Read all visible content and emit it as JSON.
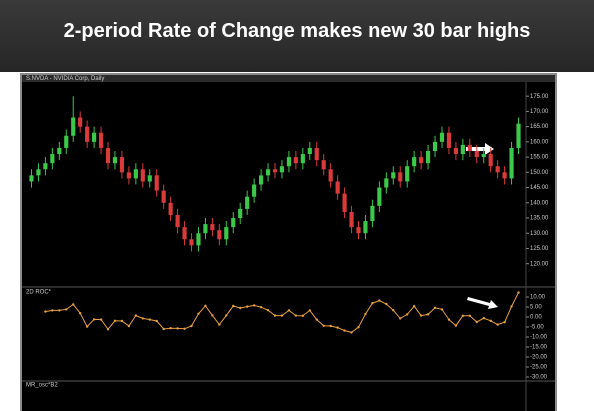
{
  "slide": {
    "title": "2-period Rate of Change makes new 30 bar highs"
  },
  "chart_data": [
    {
      "type": "candlestick",
      "title": "S.NVDA - NVIDIA Corp, Daily",
      "up_color": "#3cc84a",
      "down_color": "#d93a3a",
      "open": [
        147,
        149,
        151,
        153,
        156,
        158,
        162,
        168,
        165,
        160,
        163,
        158,
        153,
        155,
        150,
        148,
        151,
        147,
        149,
        144,
        140,
        136,
        132,
        128,
        126,
        130,
        133,
        131,
        128,
        132,
        135,
        138,
        142,
        146,
        149,
        151,
        150,
        152,
        155,
        153,
        156,
        158,
        154,
        151,
        147,
        143,
        137,
        132,
        130,
        134,
        139,
        145,
        148,
        150,
        147,
        152,
        155,
        153,
        157,
        160,
        163,
        158,
        156,
        159,
        157,
        155,
        156,
        152,
        150,
        148,
        158
      ],
      "high": [
        151,
        153,
        155,
        158,
        160,
        164,
        175,
        170,
        167,
        165,
        165,
        160,
        157,
        157,
        152,
        153,
        153,
        151,
        151,
        146,
        142,
        138,
        134,
        130,
        132,
        135,
        135,
        133,
        134,
        137,
        140,
        144,
        148,
        151,
        153,
        153,
        154,
        157,
        157,
        158,
        160,
        160,
        156,
        153,
        149,
        145,
        139,
        134,
        136,
        141,
        147,
        150,
        152,
        152,
        154,
        157,
        157,
        159,
        162,
        165,
        165,
        160,
        161,
        161,
        159,
        158,
        158,
        154,
        152,
        160,
        168
      ],
      "low": [
        145,
        147,
        149,
        151,
        154,
        156,
        160,
        163,
        158,
        158,
        156,
        151,
        151,
        148,
        146,
        146,
        145,
        145,
        142,
        138,
        134,
        130,
        126,
        124,
        124,
        128,
        129,
        126,
        126,
        130,
        133,
        136,
        140,
        144,
        147,
        148,
        148,
        150,
        151,
        151,
        154,
        152,
        149,
        145,
        141,
        135,
        130,
        128,
        128,
        132,
        137,
        143,
        146,
        145,
        145,
        150,
        151,
        151,
        155,
        158,
        156,
        154,
        154,
        155,
        153,
        153,
        150,
        148,
        146,
        146,
        156
      ],
      "close": [
        149,
        151,
        153,
        156,
        158,
        162,
        168,
        165,
        160,
        163,
        158,
        153,
        155,
        150,
        148,
        151,
        147,
        149,
        144,
        140,
        136,
        132,
        128,
        126,
        130,
        133,
        131,
        128,
        132,
        135,
        138,
        142,
        146,
        149,
        151,
        150,
        152,
        155,
        153,
        156,
        158,
        154,
        151,
        147,
        143,
        137,
        132,
        130,
        134,
        139,
        145,
        148,
        150,
        147,
        152,
        155,
        153,
        157,
        160,
        163,
        158,
        156,
        159,
        157,
        155,
        156,
        152,
        150,
        148,
        158,
        166
      ],
      "ylim": [
        113,
        179
      ],
      "yticks": [
        {
          "value": 175,
          "label": "175.00"
        },
        {
          "value": 170,
          "label": "170.00"
        },
        {
          "value": 165,
          "label": "165.00"
        },
        {
          "value": 160,
          "label": "160.00"
        },
        {
          "value": 155,
          "label": "155.00"
        },
        {
          "value": 150,
          "label": "150.00"
        },
        {
          "value": 145,
          "label": "145.00"
        },
        {
          "value": 140,
          "label": "140.00"
        },
        {
          "value": 135,
          "label": "135.00"
        },
        {
          "value": 130,
          "label": "130.00"
        },
        {
          "value": 125,
          "label": "125.00"
        },
        {
          "value": 120,
          "label": "120.00"
        }
      ]
    },
    {
      "type": "line",
      "title": "2D ROC*",
      "color": "#e8a040",
      "values": [
        null,
        null,
        2.7,
        3.3,
        3.3,
        3.8,
        6.3,
        1.9,
        -4.8,
        -1.2,
        -1.3,
        -6.1,
        -1.9,
        -2.0,
        -4.5,
        0.7,
        -0.7,
        -1.3,
        -2.0,
        -6.0,
        -5.6,
        -5.7,
        -5.9,
        -4.5,
        1.6,
        5.6,
        0.8,
        -3.8,
        0.8,
        5.5,
        4.5,
        5.2,
        5.8,
        4.9,
        3.4,
        0.7,
        0.7,
        3.3,
        0.7,
        0.6,
        3.3,
        -1.3,
        -4.4,
        -4.5,
        -5.3,
        -6.8,
        -7.7,
        -5.1,
        1.5,
        6.9,
        8.2,
        6.5,
        3.4,
        -0.7,
        1.3,
        5.4,
        0.7,
        1.3,
        4.6,
        3.8,
        -1.3,
        -4.3,
        0.6,
        0.6,
        -2.5,
        -0.6,
        -1.9,
        -3.8,
        -2.6,
        5.3,
        12.2
      ],
      "ylim": [
        -31,
        13
      ],
      "yticks": [
        {
          "value": 10,
          "label": "10.00"
        },
        {
          "value": 5,
          "label": "5.00"
        },
        {
          "value": 0,
          "label": "0.00"
        },
        {
          "value": -5,
          "label": "-5.00"
        },
        {
          "value": -10,
          "label": "-10.00"
        },
        {
          "value": -15,
          "label": "-15.00"
        },
        {
          "value": -20,
          "label": "-20.00"
        },
        {
          "value": -25,
          "label": "-25.00"
        },
        {
          "value": -30,
          "label": "-30.00"
        }
      ]
    },
    {
      "type": "panel",
      "title": "MR_osc*B2"
    }
  ]
}
